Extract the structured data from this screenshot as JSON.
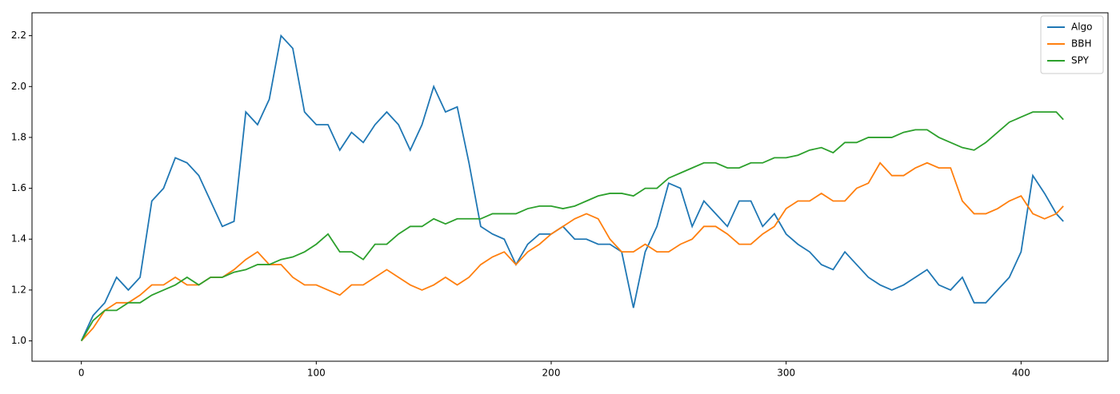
{
  "chart_data": {
    "type": "line",
    "x": [
      0,
      5,
      10,
      15,
      20,
      25,
      30,
      35,
      40,
      45,
      50,
      55,
      60,
      65,
      70,
      75,
      80,
      85,
      90,
      95,
      100,
      105,
      110,
      115,
      120,
      125,
      130,
      135,
      140,
      145,
      150,
      155,
      160,
      165,
      170,
      175,
      180,
      185,
      190,
      195,
      200,
      205,
      210,
      215,
      220,
      225,
      230,
      235,
      240,
      245,
      250,
      255,
      260,
      265,
      270,
      275,
      280,
      285,
      290,
      295,
      300,
      305,
      310,
      315,
      320,
      325,
      330,
      335,
      340,
      345,
      350,
      355,
      360,
      365,
      370,
      375,
      380,
      385,
      390,
      395,
      400,
      405,
      410,
      415,
      418
    ],
    "series": [
      {
        "name": "Algo",
        "color": "#1f77b4",
        "values": [
          1.0,
          1.1,
          1.15,
          1.25,
          1.2,
          1.25,
          1.55,
          1.6,
          1.72,
          1.7,
          1.65,
          1.55,
          1.45,
          1.47,
          1.9,
          1.85,
          1.95,
          2.2,
          2.15,
          1.9,
          1.85,
          1.85,
          1.75,
          1.82,
          1.78,
          1.85,
          1.9,
          1.85,
          1.75,
          1.85,
          2.0,
          1.9,
          1.92,
          1.7,
          1.45,
          1.42,
          1.4,
          1.3,
          1.38,
          1.42,
          1.42,
          1.45,
          1.4,
          1.4,
          1.38,
          1.38,
          1.35,
          1.13,
          1.35,
          1.45,
          1.62,
          1.6,
          1.45,
          1.55,
          1.5,
          1.45,
          1.55,
          1.55,
          1.45,
          1.5,
          1.42,
          1.38,
          1.35,
          1.3,
          1.28,
          1.35,
          1.3,
          1.25,
          1.22,
          1.2,
          1.22,
          1.25,
          1.28,
          1.22,
          1.2,
          1.25,
          1.15,
          1.15,
          1.2,
          1.25,
          1.35,
          1.65,
          1.58,
          1.5,
          1.47
        ]
      },
      {
        "name": "BBH",
        "color": "#ff7f0e",
        "values": [
          1.0,
          1.05,
          1.12,
          1.15,
          1.15,
          1.18,
          1.22,
          1.22,
          1.25,
          1.22,
          1.22,
          1.25,
          1.25,
          1.28,
          1.32,
          1.35,
          1.3,
          1.3,
          1.25,
          1.22,
          1.22,
          1.2,
          1.18,
          1.22,
          1.22,
          1.25,
          1.28,
          1.25,
          1.22,
          1.2,
          1.22,
          1.25,
          1.22,
          1.25,
          1.3,
          1.33,
          1.35,
          1.3,
          1.35,
          1.38,
          1.42,
          1.45,
          1.48,
          1.5,
          1.48,
          1.4,
          1.35,
          1.35,
          1.38,
          1.35,
          1.35,
          1.38,
          1.4,
          1.45,
          1.45,
          1.42,
          1.38,
          1.38,
          1.42,
          1.45,
          1.52,
          1.55,
          1.55,
          1.58,
          1.55,
          1.55,
          1.6,
          1.62,
          1.7,
          1.65,
          1.65,
          1.68,
          1.7,
          1.68,
          1.68,
          1.55,
          1.5,
          1.5,
          1.52,
          1.55,
          1.57,
          1.5,
          1.48,
          1.5,
          1.53
        ]
      },
      {
        "name": "SPY",
        "color": "#2ca02c",
        "values": [
          1.0,
          1.08,
          1.12,
          1.12,
          1.15,
          1.15,
          1.18,
          1.2,
          1.22,
          1.25,
          1.22,
          1.25,
          1.25,
          1.27,
          1.28,
          1.3,
          1.3,
          1.32,
          1.33,
          1.35,
          1.38,
          1.42,
          1.35,
          1.35,
          1.32,
          1.38,
          1.38,
          1.42,
          1.45,
          1.45,
          1.48,
          1.46,
          1.48,
          1.48,
          1.48,
          1.5,
          1.5,
          1.5,
          1.52,
          1.53,
          1.53,
          1.52,
          1.53,
          1.55,
          1.57,
          1.58,
          1.58,
          1.57,
          1.6,
          1.6,
          1.64,
          1.66,
          1.68,
          1.7,
          1.7,
          1.68,
          1.68,
          1.7,
          1.7,
          1.72,
          1.72,
          1.73,
          1.75,
          1.76,
          1.74,
          1.78,
          1.78,
          1.8,
          1.8,
          1.8,
          1.82,
          1.83,
          1.83,
          1.8,
          1.78,
          1.76,
          1.75,
          1.78,
          1.82,
          1.86,
          1.88,
          1.9,
          1.9,
          1.9,
          1.87
        ]
      }
    ],
    "xlim": [
      -21,
      437
    ],
    "ylim": [
      0.92,
      2.29
    ],
    "xticks": [
      0,
      100,
      200,
      300,
      400
    ],
    "yticks": [
      {
        "value": 1,
        "label": "1.0"
      },
      1.2,
      1.4,
      1.6,
      1.8,
      {
        "value": 2,
        "label": "2.0"
      },
      2.2
    ],
    "legend": "upper right"
  }
}
